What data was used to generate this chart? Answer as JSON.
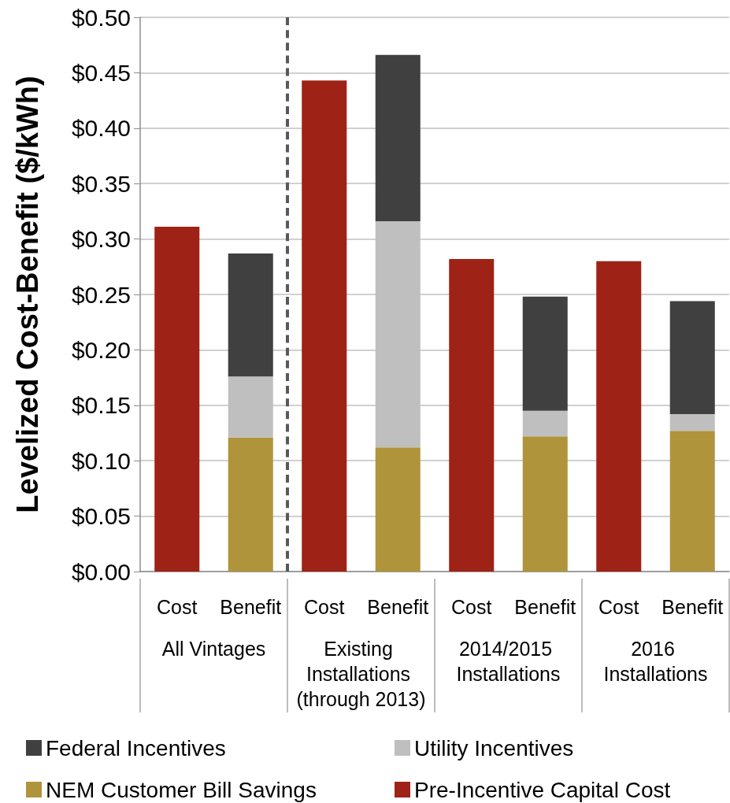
{
  "chart_data": {
    "type": "bar",
    "ylabel": "Levelized Cost-Benefit ($/kWh)",
    "categories": [
      "Cost",
      "Benefit",
      "Cost",
      "Benefit",
      "Cost",
      "Benefit",
      "Cost",
      "Benefit"
    ],
    "series": [
      {
        "name": "Pre-Incentive Capital Cost",
        "color": "#9e2216",
        "values": [
          0.311,
          null,
          0.443,
          null,
          0.282,
          null,
          0.28,
          null
        ]
      },
      {
        "name": "NEM Customer Bill Savings",
        "color": "#b0943c",
        "values": [
          null,
          0.121,
          null,
          0.112,
          null,
          0.122,
          null,
          0.127
        ]
      },
      {
        "name": "Utility Incentives",
        "color": "#bfbfbf",
        "values": [
          null,
          0.055,
          null,
          0.204,
          null,
          0.023,
          null,
          0.015
        ]
      },
      {
        "name": "Federal Incentives",
        "color": "#404040",
        "values": [
          null,
          0.111,
          null,
          0.15,
          null,
          0.103,
          null,
          0.102
        ]
      }
    ],
    "stacked": true,
    "ylim": [
      0,
      0.5
    ],
    "yticks": [
      {
        "value": 0,
        "label": "$0.00"
      },
      {
        "value": 0.05,
        "label": "$0.05"
      },
      {
        "value": 0.1,
        "label": "$0.10"
      },
      {
        "value": 0.15,
        "label": "$0.15"
      },
      {
        "value": 0.2,
        "label": "$0.20"
      },
      {
        "value": 0.25,
        "label": "$0.25"
      },
      {
        "value": 0.3,
        "label": "$0.30"
      },
      {
        "value": 0.35,
        "label": "$0.35"
      },
      {
        "value": 0.4,
        "label": "$0.40"
      },
      {
        "value": 0.45,
        "label": "$0.45"
      },
      {
        "value": 0.5,
        "label": "$0.50"
      }
    ],
    "grid": "y",
    "legend": "bottom",
    "annotations": [
      "All Vintages",
      "Existing Installations (through 2013)",
      "2014/2015 Installations",
      "2016 Installations"
    ]
  }
}
